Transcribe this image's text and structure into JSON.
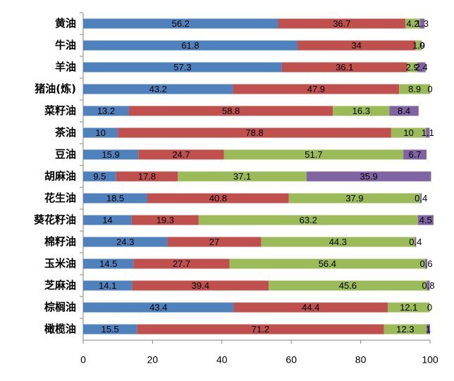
{
  "chart_data": {
    "type": "stacked-bar-horizontal",
    "categories": [
      "黄油",
      "牛油",
      "羊油",
      "猪油(炼)",
      "菜籽油",
      "茶油",
      "豆油",
      "胡麻油",
      "花生油",
      "葵花籽油",
      "棉籽油",
      "玉米油",
      "芝麻油",
      "棕榈油",
      "橄榄油"
    ],
    "series": [
      {
        "color": "#4f81bd",
        "values": [
          56.2,
          61.8,
          57.3,
          43.2,
          13.2,
          10,
          15.9,
          9.5,
          18.5,
          14,
          24.3,
          14.5,
          14.1,
          43.4,
          15.5
        ]
      },
      {
        "color": "#c0504d",
        "values": [
          36.7,
          34,
          36.1,
          47.9,
          58.8,
          78.8,
          24.7,
          17.8,
          40.8,
          19.3,
          27,
          27.7,
          39.4,
          44.4,
          71.2
        ]
      },
      {
        "color": "#9bbb59",
        "values": [
          4.2,
          1.9,
          2.9,
          8.9,
          16.3,
          10,
          51.7,
          37.1,
          37.9,
          63.2,
          44.3,
          56.4,
          45.6,
          12.1,
          12.3
        ]
      },
      {
        "color": "#8064a2",
        "values": [
          1.3,
          0,
          2.4,
          0,
          8.4,
          1.1,
          6.7,
          35.9,
          0.4,
          4.5,
          0.4,
          0.6,
          0.8,
          0,
          1
        ]
      }
    ],
    "xlim": [
      0,
      100
    ],
    "xticks": [
      0,
      20,
      40,
      60,
      80,
      100
    ]
  }
}
